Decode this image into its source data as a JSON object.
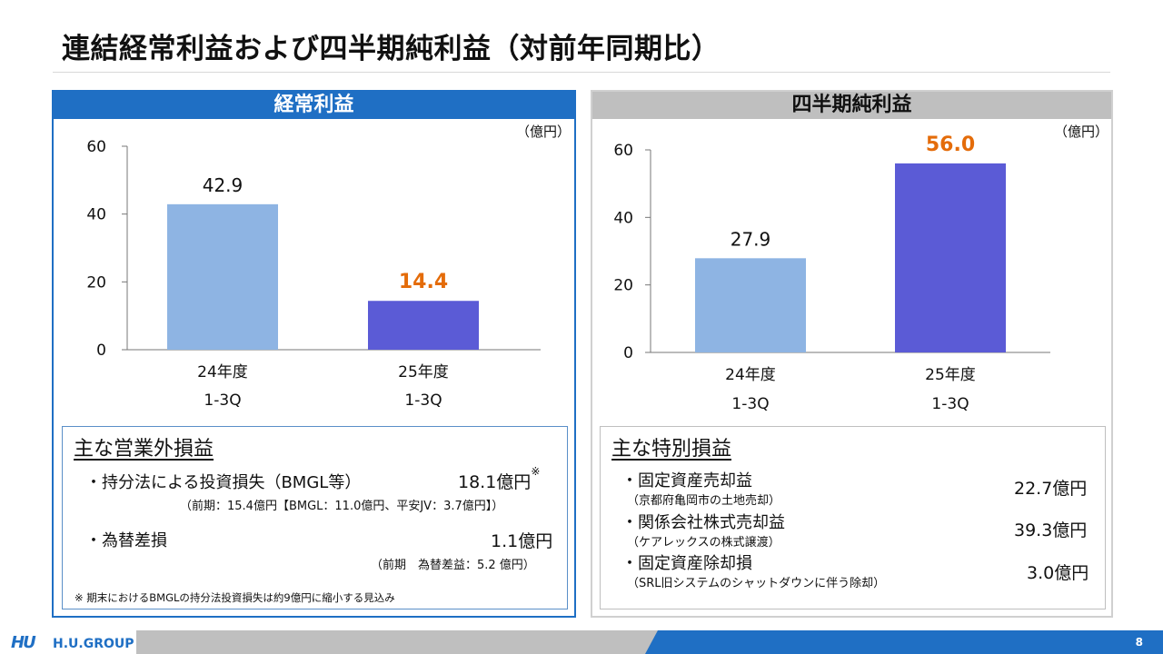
{
  "page": {
    "title": "連結経常利益および四半期純利益（対前年同期比）",
    "page_number": "8"
  },
  "colors": {
    "accent_blue": "#1f6fc4",
    "bar_prev": "#8eb4e3",
    "bar_curr": "#5b5bd6",
    "highlight_orange": "#e46c0a"
  },
  "left_panel": {
    "header": "経常利益",
    "unit": "（億円）"
  },
  "right_panel": {
    "header": "四半期純利益",
    "unit": "（億円）"
  },
  "chart_data": [
    {
      "type": "bar",
      "title": "経常利益",
      "categories": [
        [
          "24年度",
          "1-3Q"
        ],
        [
          "25年度",
          "1-3Q"
        ]
      ],
      "values": [
        42.9,
        14.4
      ],
      "value_labels": [
        "42.9",
        "14.4"
      ],
      "ylim": [
        0,
        60
      ],
      "yticks": [
        0,
        20,
        40,
        60
      ],
      "ylabel": "（億円）",
      "xlabel": ""
    },
    {
      "type": "bar",
      "title": "四半期純利益",
      "categories": [
        [
          "24年度",
          "1-3Q"
        ],
        [
          "25年度",
          "1-3Q"
        ]
      ],
      "values": [
        27.9,
        56.0
      ],
      "value_labels": [
        "27.9",
        "56.0"
      ],
      "ylim": [
        0,
        60
      ],
      "yticks": [
        0,
        20,
        40,
        60
      ],
      "ylabel": "（億円）",
      "xlabel": ""
    }
  ],
  "non_operating": {
    "title": "主な営業外損益",
    "item1_label": "・持分法による投資損失（BMGL等）",
    "item1_value": "18.1億円",
    "item1_mark": "※",
    "item1_note": "（前期：15.4億円【BMGL：11.0億円、平安JV：3.7億円】）",
    "item2_label": "・為替差損",
    "item2_value": "1.1億円",
    "item2_note": "（前期　為替差益：5.2 億円）",
    "footnote": "※ 期末におけるBMGLの持分法投資損失は約9億円に縮小する見込み"
  },
  "extraordinary": {
    "title": "主な特別損益",
    "item1_label": "・固定資産売却益",
    "item1_note": "（京都府亀岡市の土地売却）",
    "item1_value": "22.7億円",
    "item2_label": "・関係会社株式売却益",
    "item2_note": "（ケアレックスの株式譲渡）",
    "item2_value": "39.3億円",
    "item3_label": "・固定資産除却損",
    "item3_note": "（SRL旧システムのシャットダウンに伴う除却）",
    "item3_value": "3.0億円"
  },
  "footer": {
    "logo_mark": "HU",
    "logo_text": "H.U.GROUP"
  }
}
